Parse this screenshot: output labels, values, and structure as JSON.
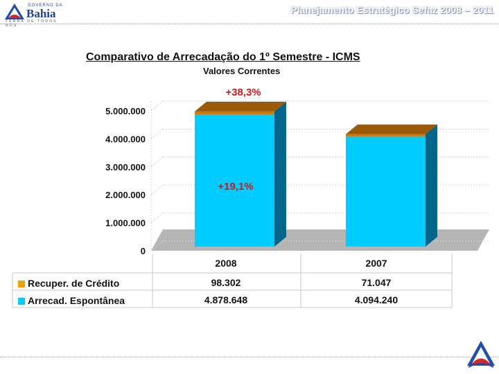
{
  "header": {
    "logo_small": "GOVERNO DA",
    "logo_big": "Bahia",
    "logo_tagline": "TERRA DE TODOS NÓS",
    "title": "Planejamento Estratégico Sefaz 2008 – 2011"
  },
  "colors": {
    "spontaneous": "#00ccff",
    "spontaneous_side": "#00658a",
    "credit": "#c8790a",
    "credit_top": "#9a5a06",
    "floor": "#b5b5b5",
    "annotation": "#cc1a1a"
  },
  "chart_data": {
    "type": "bar",
    "stacked": true,
    "title": "Comparativo de Arrecadação do 1º Semestre - ICMS",
    "subtitle": "Valores Correntes",
    "categories": [
      "2008",
      "2007"
    ],
    "series": [
      {
        "name": "Arrecad. Espontânea",
        "values": [
          4878648,
          4094240
        ],
        "labels": [
          "4.878.648",
          "4.094.240"
        ]
      },
      {
        "name": "Recuper. de Crédito",
        "values": [
          98302,
          71047
        ],
        "labels": [
          "98.302",
          "71.047"
        ]
      }
    ],
    "ylim": [
      0,
      5000000
    ],
    "yticks": [
      0,
      1000000,
      2000000,
      3000000,
      4000000,
      5000000
    ],
    "ytick_labels": [
      "0",
      "1.000.000",
      "2.000.000",
      "3.000.000",
      "4.000.000",
      "5.000.000"
    ],
    "annotations": [
      "+38,3%",
      "+19,1%"
    ],
    "grid": true,
    "legend": "data-table"
  }
}
